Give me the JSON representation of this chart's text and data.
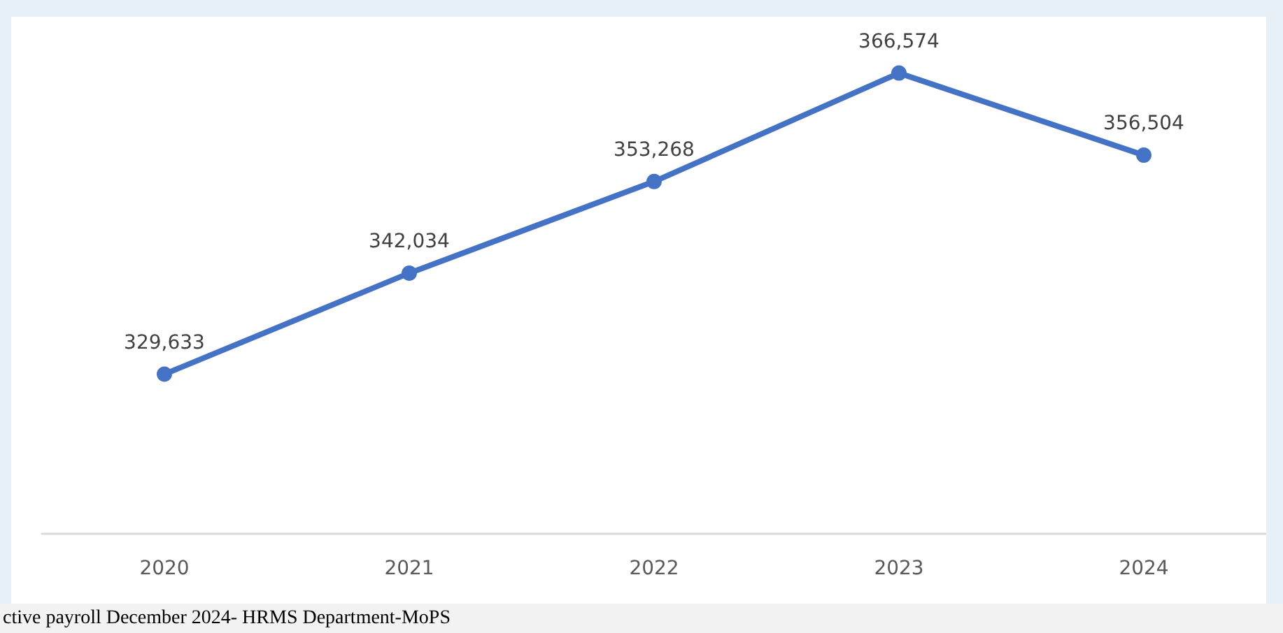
{
  "chart_data": {
    "type": "line",
    "categories": [
      "2020",
      "2021",
      "2022",
      "2023",
      "2024"
    ],
    "series": [
      {
        "color": "#4472c4",
        "values": [
          329633,
          342034,
          353268,
          366574,
          356504
        ],
        "value_labels": [
          "329,633",
          "342,034",
          "353,268",
          "366,574",
          "356,504"
        ]
      }
    ],
    "marker": "circle",
    "grid": false,
    "annotations": [
      "ctive payroll December 2024- HRMS Department-MoPS"
    ]
  }
}
